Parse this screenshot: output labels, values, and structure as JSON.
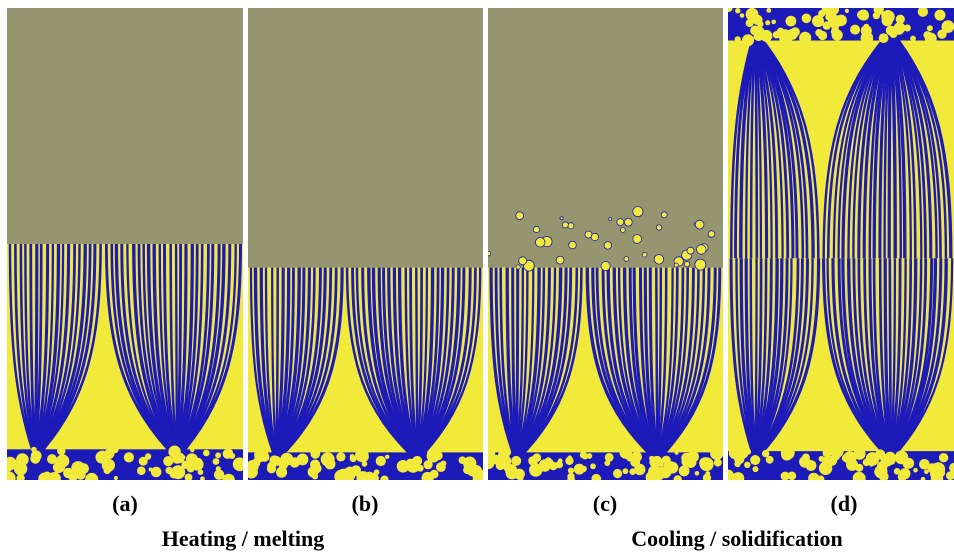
{
  "colors": {
    "liquid": "#959670",
    "phase_yellow": "#f2ea3a",
    "phase_blue": "#1c1ab8"
  },
  "panels": [
    {
      "id": "a",
      "label": "(a)",
      "stage": "heating",
      "solid_fraction": 0.5,
      "droplets": false,
      "top_solid": false
    },
    {
      "id": "b",
      "label": "(b)",
      "stage": "melting",
      "solid_fraction": 0.45,
      "droplets": false,
      "top_solid": false
    },
    {
      "id": "c",
      "label": "(c)",
      "stage": "cooling",
      "solid_fraction": 0.45,
      "droplets": true,
      "top_solid": false
    },
    {
      "id": "d",
      "label": "(d)",
      "stage": "solidification",
      "solid_fraction": 1.0,
      "droplets": false,
      "top_solid": true
    }
  ],
  "captions": {
    "left": "Heating / melting",
    "right": "Cooling / solidification"
  }
}
